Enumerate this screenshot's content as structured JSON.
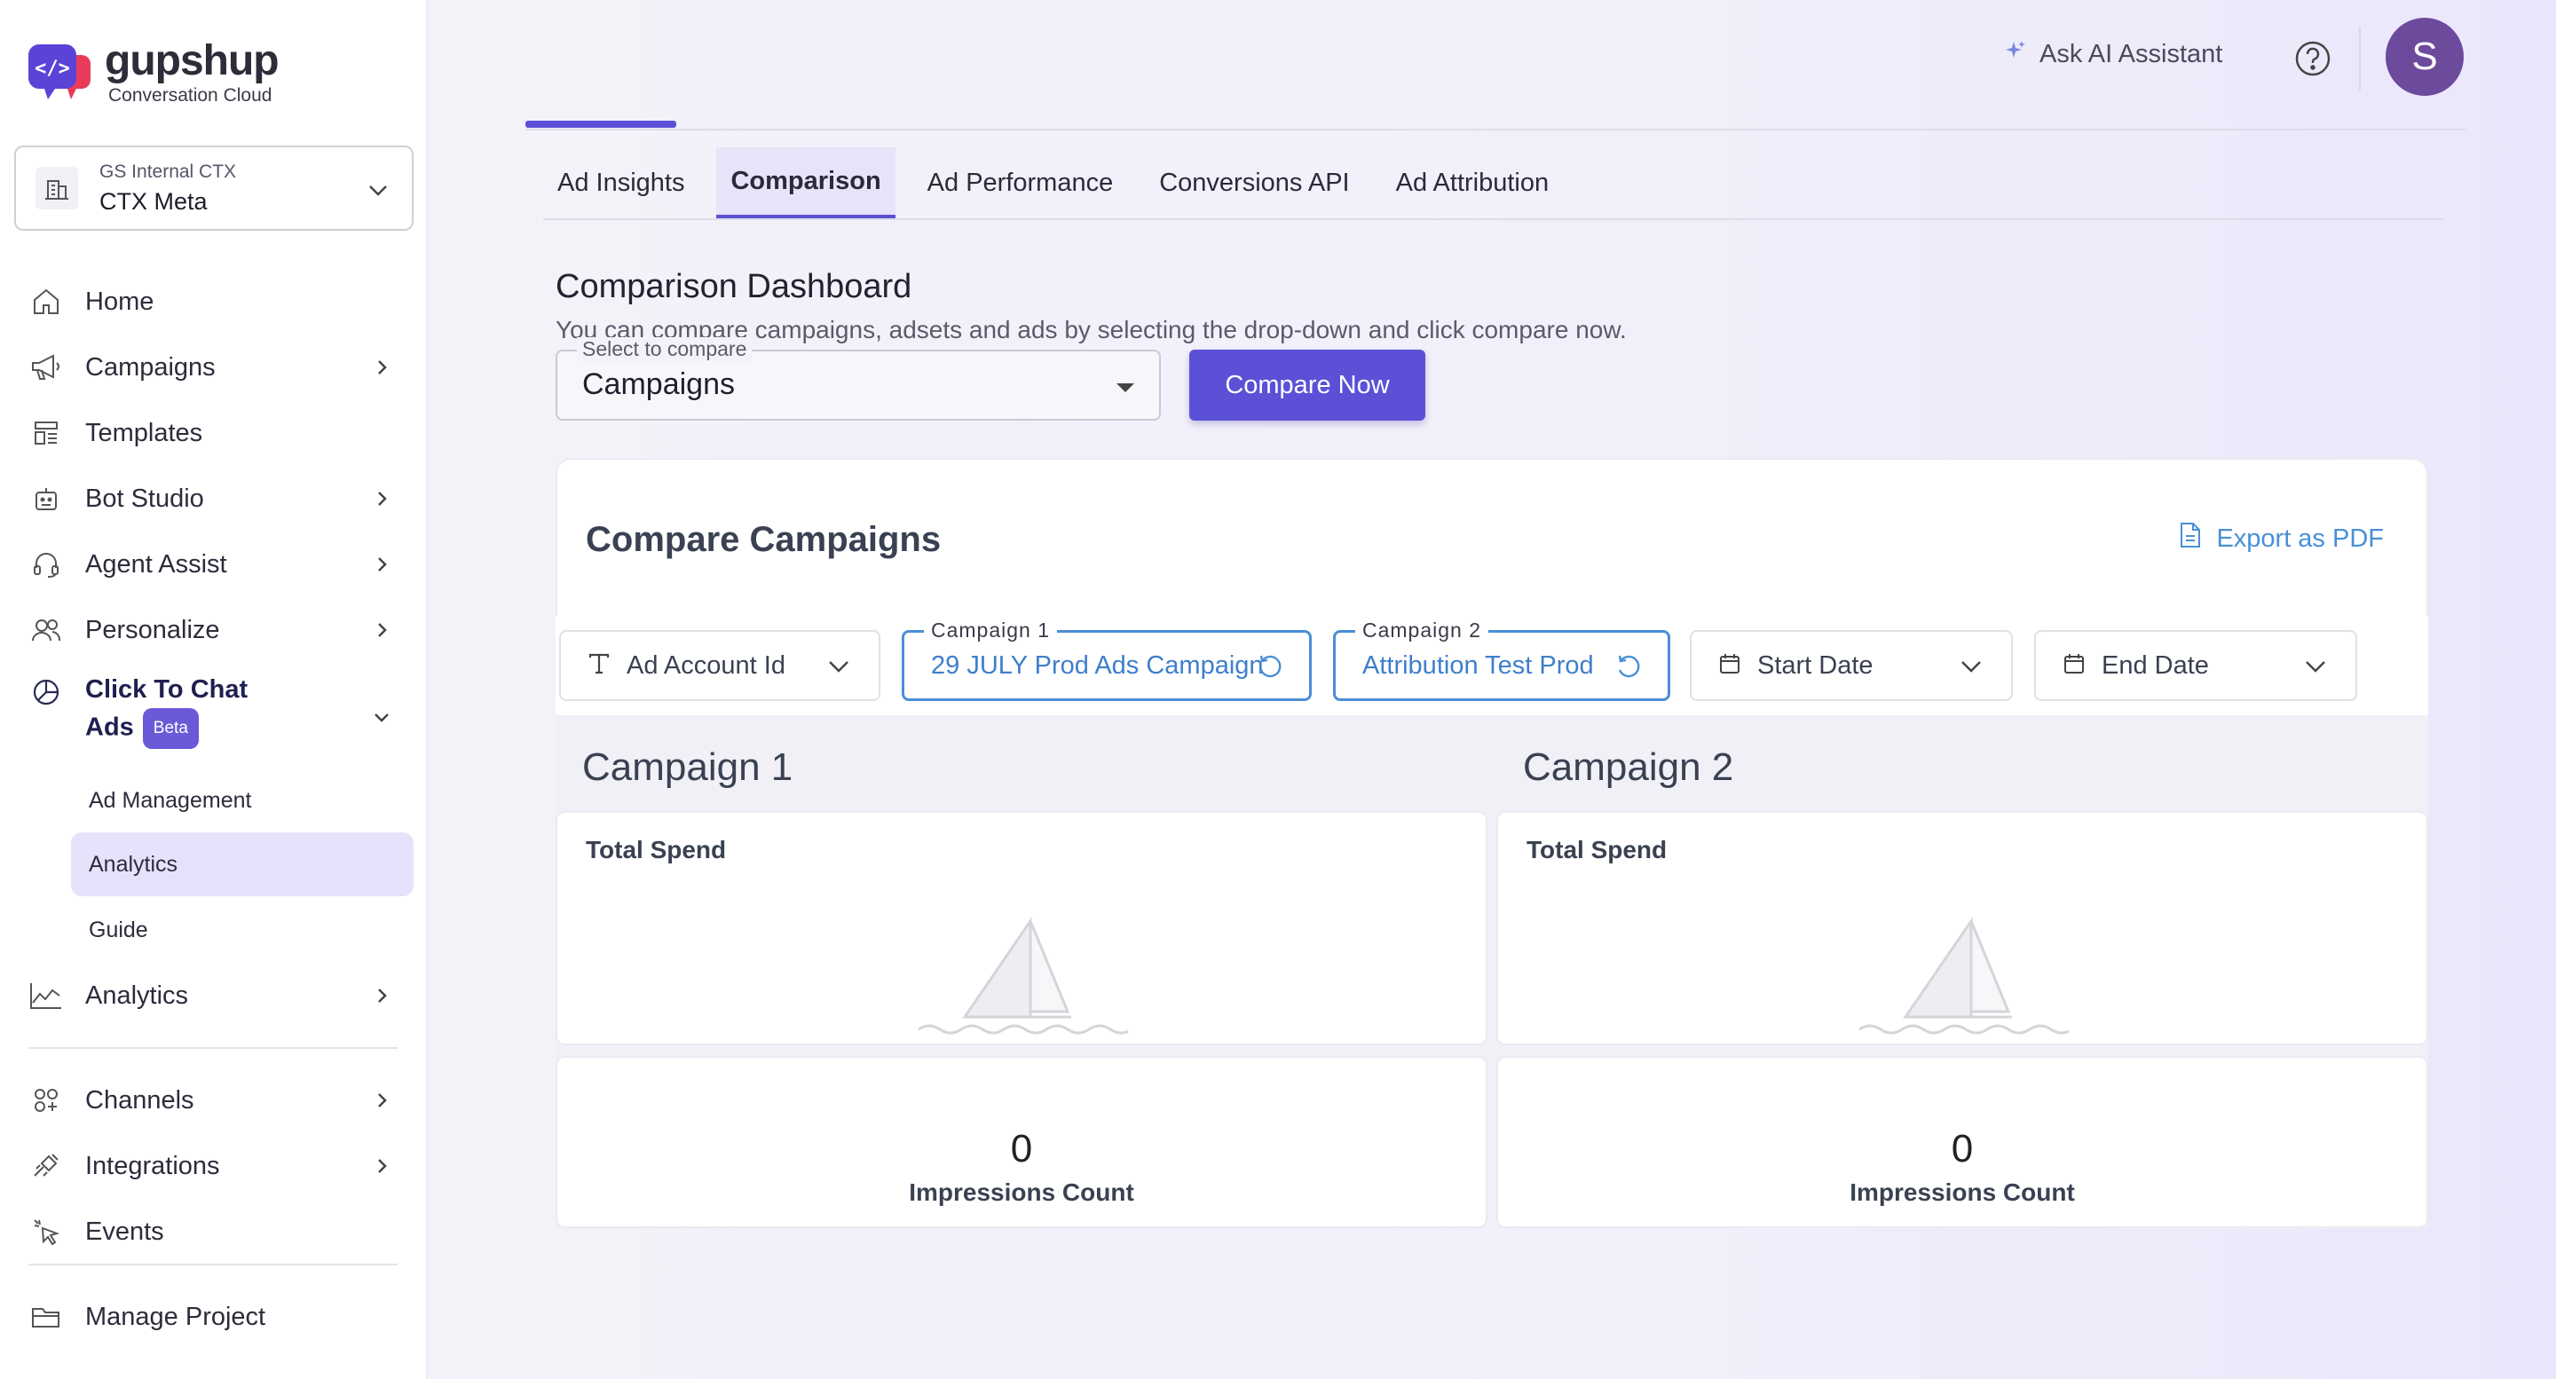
{
  "brand": {
    "name": "gupshup",
    "tagline": "Conversation Cloud"
  },
  "project": {
    "org": "GS Internal CTX",
    "name": "CTX Meta"
  },
  "nav": {
    "home": "Home",
    "campaigns": "Campaigns",
    "templates": "Templates",
    "bot_studio": "Bot Studio",
    "agent_assist": "Agent Assist",
    "personalize": "Personalize",
    "click_to_chat_line1": "Click To Chat",
    "click_to_chat_line2": "Ads",
    "beta": "Beta",
    "sub_ad_management": "Ad Management",
    "sub_analytics": "Analytics",
    "sub_guide": "Guide",
    "analytics": "Analytics",
    "channels": "Channels",
    "integrations": "Integrations",
    "events": "Events",
    "manage_project": "Manage Project"
  },
  "header": {
    "ai_assistant": "Ask AI Assistant",
    "avatar_initial": "S"
  },
  "tabs": [
    {
      "label": "Ad Insights",
      "active": false
    },
    {
      "label": "Comparison",
      "active": true
    },
    {
      "label": "Ad Performance",
      "active": false
    },
    {
      "label": "Conversions API",
      "active": false
    },
    {
      "label": "Ad Attribution",
      "active": false
    }
  ],
  "dashboard": {
    "title": "Comparison Dashboard",
    "description": "You can compare campaigns, adsets and ads by selecting the drop-down and click compare now.",
    "select_legend": "Select to compare",
    "select_value": "Campaigns",
    "compare_button": "Compare Now"
  },
  "card": {
    "title": "Compare Campaigns",
    "export_label": "Export as PDF",
    "filters": {
      "ad_account": "Ad Account Id",
      "campaign1_legend": "Campaign 1",
      "campaign1_value": "29 JULY Prod Ads Campaign",
      "campaign2_legend": "Campaign 2",
      "campaign2_value": "Attribution Test Prod",
      "start_date": "Start Date",
      "end_date": "End Date"
    },
    "columns": [
      {
        "title": "Campaign 1",
        "spend_title": "Total Spend",
        "impressions_value": "0",
        "impressions_label": "Impressions Count"
      },
      {
        "title": "Campaign 2",
        "spend_title": "Total Spend",
        "impressions_value": "0",
        "impressions_label": "Impressions Count"
      }
    ]
  },
  "colors": {
    "accent": "#5b50d6",
    "link": "#4a8fd6",
    "avatar": "#6c4a9c"
  },
  "icons": {
    "home": "home-icon",
    "campaigns": "megaphone-icon",
    "templates": "template-icon",
    "bot_studio": "bot-icon",
    "agent_assist": "headset-icon",
    "personalize": "users-icon",
    "click_to_chat": "chart-pie-icon",
    "analytics": "line-chart-icon",
    "channels": "grid-icon",
    "integrations": "plug-icon",
    "events": "cursor-click-icon",
    "manage_project": "folder-icon"
  }
}
